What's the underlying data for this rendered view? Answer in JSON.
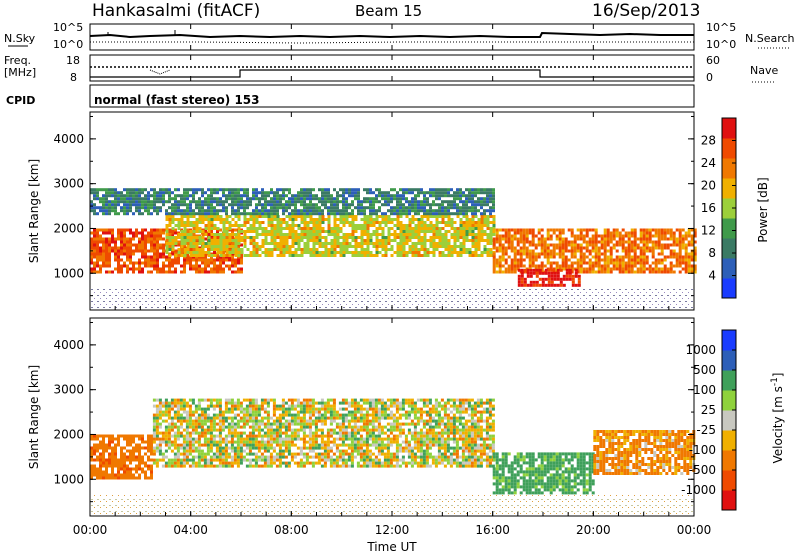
{
  "header": {
    "station": "Hankasalmi (fitACF)",
    "beam": "Beam 15",
    "date": "16/Sep/2013"
  },
  "strips": {
    "sky_label": "N.Sky",
    "search_label": "N.Search",
    "sky_ticks": [
      "10^5",
      "10^0"
    ],
    "freq_label_1": "Freq.",
    "freq_label_2": "[MHz]",
    "freq_ticks": [
      "18",
      "8"
    ],
    "nave_label": "Nave",
    "nave_ticks": [
      "60",
      "0"
    ],
    "cpid_label": "CPID",
    "cpid_value": "normal (fast stereo) 153"
  },
  "colors": {
    "power_scale": [
      "#1a3cff",
      "#2d5fb8",
      "#3a7a64",
      "#3f9a4a",
      "#9ccf3a",
      "#f0b000",
      "#f07800",
      "#ef4a00",
      "#e01010"
    ],
    "velocity_scale": [
      "#e01010",
      "#ef4a00",
      "#f07800",
      "#f0b000",
      "#c8c8c0",
      "#8fd23c",
      "#3fa05a",
      "#2d5fb8",
      "#1a3cff"
    ]
  },
  "chart_data": [
    {
      "type": "heatmap",
      "title": "Power",
      "xlabel": "Time UT",
      "ylabel": "Slant Range [km]",
      "xlim": [
        "00:00",
        "24:00"
      ],
      "ylim": [
        180,
        4600
      ],
      "x_ticks": [
        "00:00",
        "04:00",
        "08:00",
        "12:00",
        "16:00",
        "20:00",
        "00:00"
      ],
      "y_ticks": [
        1000,
        2000,
        3000,
        4000
      ],
      "colorbar": {
        "label": "Power [dB]",
        "ticks": [
          4,
          8,
          12,
          16,
          20,
          24,
          28
        ],
        "range": [
          0,
          32
        ]
      },
      "echo_regions": [
        {
          "t_start": 0.0,
          "t_end": 6.0,
          "range_start": 1000,
          "range_end": 2000,
          "value": 26
        },
        {
          "t_start": 3.0,
          "t_end": 16.0,
          "range_start": 1400,
          "range_end": 2300,
          "value": 18
        },
        {
          "t_start": 0.0,
          "t_end": 16.0,
          "range_start": 2300,
          "range_end": 2900,
          "value": 9
        },
        {
          "t_start": 16.0,
          "t_end": 24.0,
          "range_start": 1000,
          "range_end": 2000,
          "value": 24
        },
        {
          "t_start": 17.0,
          "t_end": 19.5,
          "range_start": 700,
          "range_end": 1100,
          "value": 30
        }
      ]
    },
    {
      "type": "heatmap",
      "title": "Velocity",
      "xlabel": "Time UT",
      "ylabel": "Slant Range [km]",
      "xlim": [
        "00:00",
        "24:00"
      ],
      "ylim": [
        180,
        4600
      ],
      "x_ticks": [
        "00:00",
        "04:00",
        "08:00",
        "12:00",
        "16:00",
        "20:00",
        "00:00"
      ],
      "y_ticks": [
        1000,
        2000,
        3000,
        4000
      ],
      "colorbar": {
        "label": "Velocity [m s^-1]",
        "ticks": [
          "1000",
          "500",
          "100",
          "25",
          "-25",
          "-100",
          "-500",
          "-1000"
        ]
      },
      "echo_regions": [
        {
          "t_start": 0.0,
          "t_end": 2.5,
          "range_start": 1000,
          "range_end": 2000,
          "value": -400
        },
        {
          "t_start": 2.5,
          "t_end": 16.0,
          "range_start": 1300,
          "range_end": 2800,
          "value": 0
        },
        {
          "t_start": 16.0,
          "t_end": 20.0,
          "range_start": 700,
          "range_end": 1600,
          "value": 200
        },
        {
          "t_start": 20.0,
          "t_end": 24.0,
          "range_start": 1100,
          "range_end": 2100,
          "value": -150
        }
      ]
    }
  ]
}
